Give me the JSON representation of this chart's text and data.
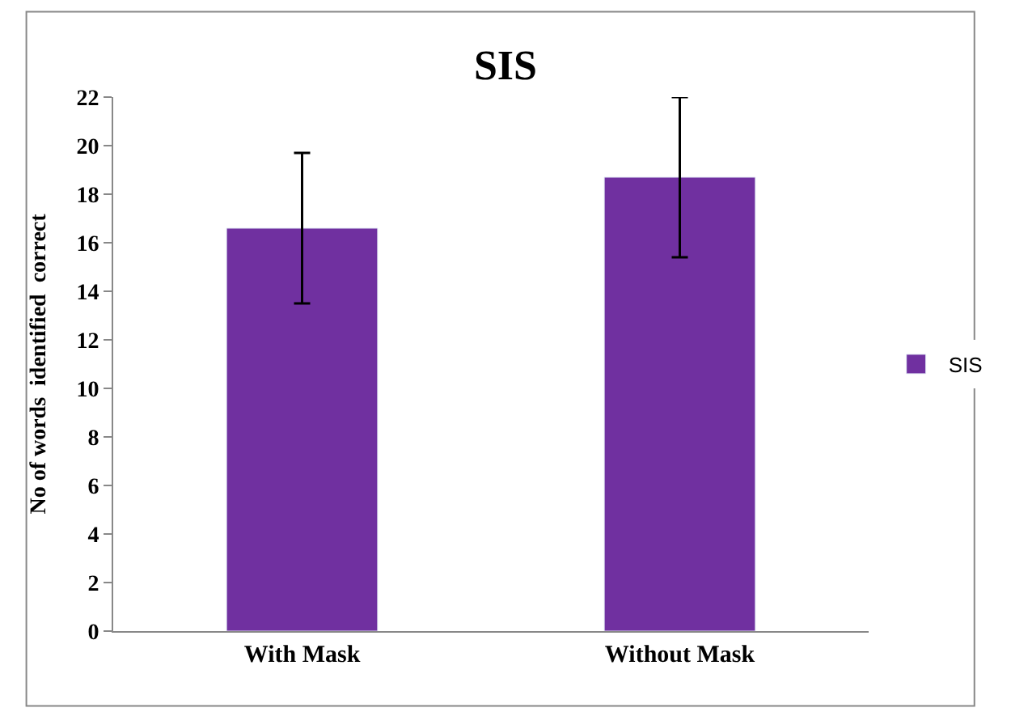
{
  "chart_data": {
    "type": "bar",
    "title": "SIS",
    "ylabel": "No of words  identified  correct",
    "categories": [
      "With Mask",
      "Without Mask"
    ],
    "series": [
      {
        "name": "SIS",
        "color": "#7030a0",
        "values": [
          16.6,
          18.7
        ],
        "errors": [
          3.1,
          3.3
        ]
      }
    ],
    "ylim": [
      0,
      22
    ],
    "yticks": [
      0,
      2,
      4,
      6,
      8,
      10,
      12,
      14,
      16,
      18,
      20,
      22
    ],
    "grid": false,
    "legend": "right"
  }
}
